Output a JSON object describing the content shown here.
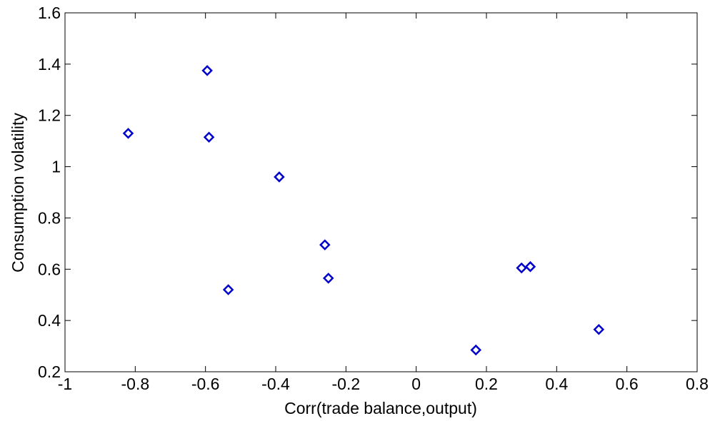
{
  "chart_data": {
    "type": "scatter",
    "title": "",
    "xlabel": "Corr(trade balance,output)",
    "ylabel": "Consumption volatility",
    "xlim": [
      -1,
      0.8
    ],
    "ylim": [
      0.2,
      1.6
    ],
    "xticks": [
      -1,
      -0.8,
      -0.6,
      -0.4,
      -0.2,
      0,
      0.2,
      0.4,
      0.6,
      0.8
    ],
    "yticks": [
      0.2,
      0.4,
      0.6,
      0.8,
      1,
      1.2,
      1.4,
      1.6
    ],
    "xtick_labels": [
      "-1",
      "-0.8",
      "-0.6",
      "-0.4",
      "-0.2",
      "0",
      "0.2",
      "0.4",
      "0.6",
      "0.8"
    ],
    "ytick_labels": [
      "0.2",
      "0.4",
      "0.6",
      "0.8",
      "1",
      "1.2",
      "1.4",
      "1.6"
    ],
    "grid": false,
    "marker": "diamond",
    "marker_color": "#0000cc",
    "points": [
      {
        "x": -0.82,
        "y": 1.13
      },
      {
        "x": -0.595,
        "y": 1.375
      },
      {
        "x": -0.59,
        "y": 1.115
      },
      {
        "x": -0.535,
        "y": 0.52
      },
      {
        "x": -0.39,
        "y": 0.96
      },
      {
        "x": -0.26,
        "y": 0.695
      },
      {
        "x": -0.25,
        "y": 0.565
      },
      {
        "x": 0.17,
        "y": 0.285
      },
      {
        "x": 0.3,
        "y": 0.605
      },
      {
        "x": 0.325,
        "y": 0.61
      },
      {
        "x": 0.52,
        "y": 0.365
      }
    ]
  }
}
